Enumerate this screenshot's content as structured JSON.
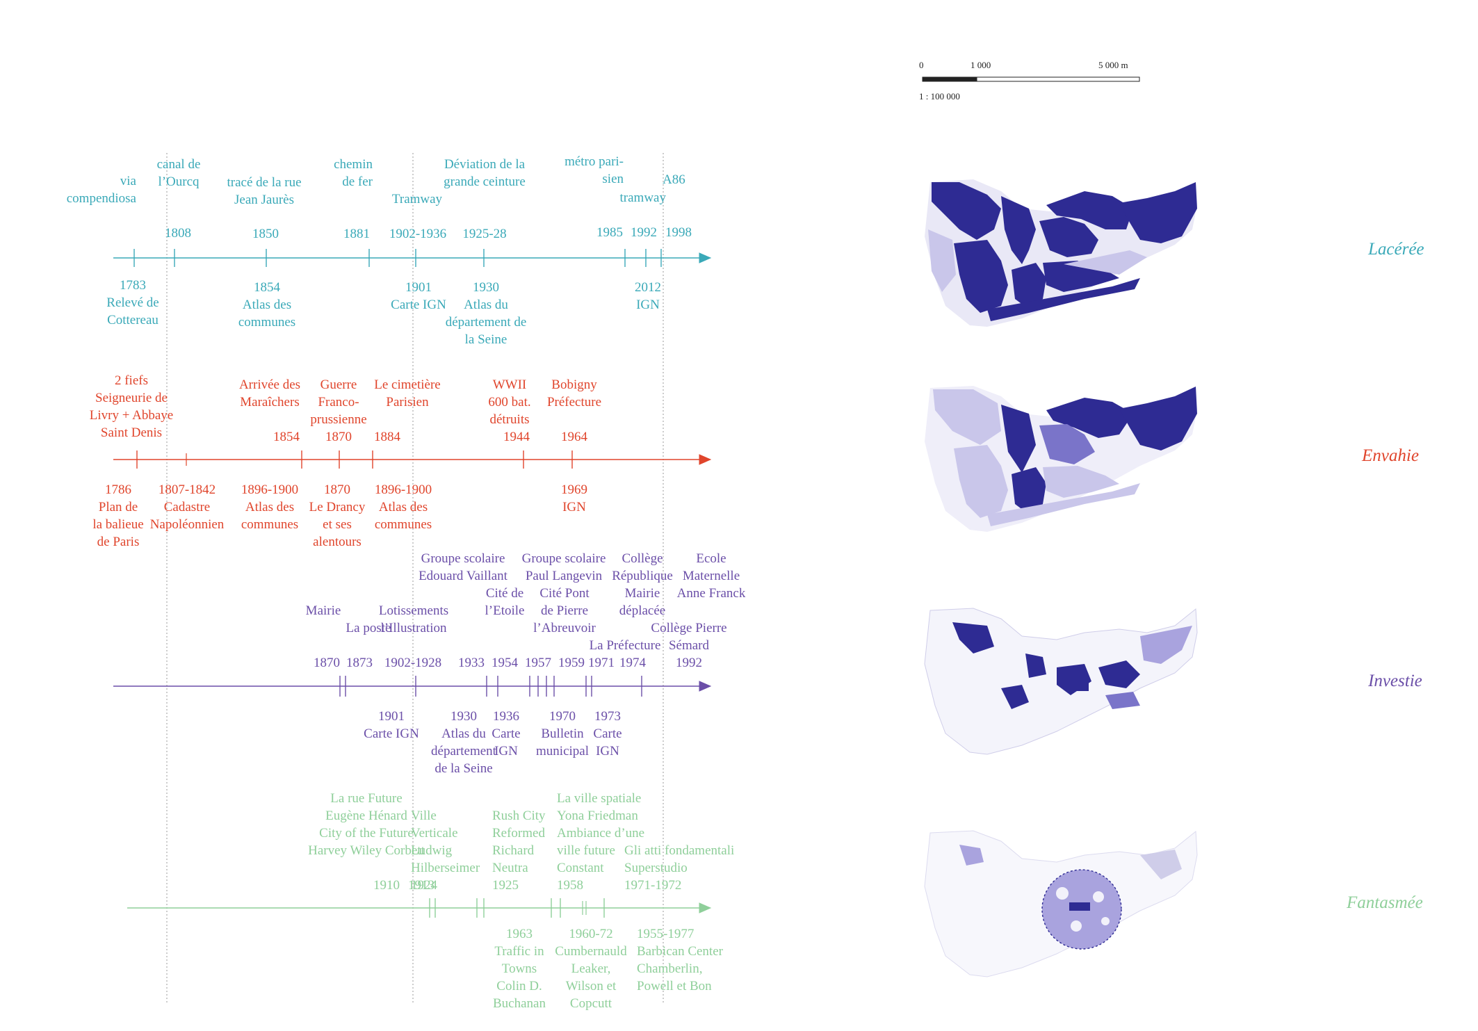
{
  "colors": {
    "cyan": "#3aa9b8",
    "red": "#e0452c",
    "purple": "#6b4fa8",
    "green": "#8fcf9a",
    "map": "#2e2b93",
    "map_light": "#a9a3de"
  },
  "scale_bar": {
    "zero": "0",
    "mid": "1 000",
    "end": "5 000 m",
    "ratio": "1 : 100 000"
  },
  "timeline_cyan": {
    "above": [
      "via\ncompendiosa",
      "canal de\nl’Ourcq",
      "tracé de la rue\nJean Jaurès",
      "chemin\nde fer",
      "Tramway",
      "Déviation de la\ngrande ceinture",
      "métro pari-\nsien",
      "tramway",
      "A86"
    ],
    "years_above": [
      "1808",
      "1850",
      "1881",
      "1902-1936",
      "1925-28",
      "1985",
      "1992",
      "1998"
    ],
    "below": [
      "1783\nRelevé de\nCottereau",
      "1854\nAtlas des\ncommunes",
      "1901\nCarte IGN",
      "1930\nAtlas du\ndépartement de\nla Seine",
      "2012\nIGN"
    ]
  },
  "timeline_red": {
    "above": [
      "2 fiefs\nSeigneurie de\nLivry + Abbaye\nSaint Denis",
      "Arrivée des\nMaraîchers",
      "Guerre\nFranco-\nprussienne",
      "Le cimetière\nParisien",
      "WWII\n600 bat.\ndétruits",
      "Bobigny\nPréfecture"
    ],
    "years_above": [
      "1854",
      "1870",
      "1884",
      "1944",
      "1964"
    ],
    "below": [
      "1786\nPlan de\nla balieue\nde Paris",
      "1807-1842\nCadastre\nNapoléonnien",
      "1896-1900\nAtlas des\ncommunes",
      "1870\nLe Drancy\net ses\nalentours",
      "1896-1900\nAtlas des\ncommunes",
      "1969\nIGN"
    ]
  },
  "timeline_purple": {
    "above": [
      "Mairie",
      "La poste",
      "Lotissements\nl’Illustration",
      "Groupe scolaire\nEdouard Vaillant",
      "Cité de\nl’Etoile",
      "Groupe scolaire\nPaul Langevin",
      "Cité Pont\nde Pierre\nl’Abreuvoir",
      "Collège\nRépublique\nMairie\ndéplacée",
      "Ecole\nMaternelle\nAnne Franck",
      "Collège Pierre\nSémard",
      "La Préfecture"
    ],
    "years_above": [
      "1870",
      "1873",
      "1902-1928",
      "1933",
      "1954",
      "1957",
      "1959",
      "1971",
      "1974",
      "1992"
    ],
    "below": [
      "1901\nCarte IGN",
      "1930\nAtlas du\ndépartement\nde la Seine",
      "1936\nCarte\nIGN",
      "1970\nBulletin\nmunicipal",
      "1973\nCarte\nIGN"
    ]
  },
  "timeline_green": {
    "above": [
      "La rue Future\nEugène Hénard\nCity of the Future\nHarvey Wiley Corbett",
      "Ville\nVerticale\nLudwig\nHilberseimer\n1924",
      "Rush City\nReformed\nRichard\nNeutra\n1925",
      "La ville spatiale\nYona Friedman\nAmbiance d’une\nville future\nConstant\n1958",
      "Gli atti fondamentali\nSuperstudio\n1971-1972"
    ],
    "years_above": [
      "1910",
      "1913"
    ],
    "below": [
      "1963\nTraffic in\nTowns\nColin D.\nBuchanan",
      "1960-72\nCumbernauld\nLeaker,\nWilson et\nCopcutt",
      "1955-1977\nBarbican Center\nChamberlin,\nPowell et Bon"
    ]
  },
  "captions": [
    "Lacérée",
    "Envahie",
    "Investie",
    "Fantasmée"
  ]
}
